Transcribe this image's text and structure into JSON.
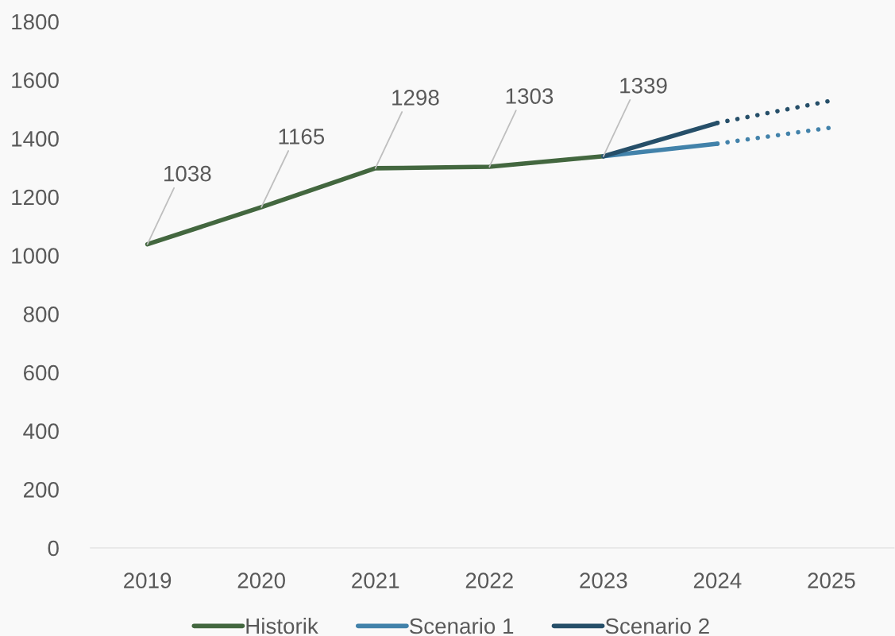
{
  "chart_data": {
    "type": "line",
    "categories": [
      "2019",
      "2020",
      "2021",
      "2022",
      "2023",
      "2024",
      "2025"
    ],
    "series": [
      {
        "name": "Historik",
        "color": "#43673f",
        "values": [
          1038,
          1165,
          1298,
          1303,
          1339,
          null,
          null
        ]
      },
      {
        "name": "Scenario 1",
        "color": "#4282aa",
        "values": [
          null,
          null,
          null,
          null,
          1339,
          1382,
          null
        ]
      },
      {
        "name": "Scenario 2",
        "color": "#264f69",
        "values": [
          null,
          null,
          null,
          null,
          1339,
          1453,
          null
        ]
      },
      {
        "color": "#4282aa",
        "line_style": "dotted",
        "values": [
          null,
          null,
          null,
          null,
          null,
          1382,
          1437
        ]
      },
      {
        "color": "#264f69",
        "line_style": "dotted",
        "values": [
          null,
          null,
          null,
          null,
          null,
          1453,
          1529
        ]
      }
    ],
    "ylim": [
      0,
      1800
    ],
    "yticks": [
      0,
      200,
      400,
      600,
      800,
      1000,
      1200,
      1400,
      1600,
      1800
    ],
    "grid": false,
    "legend": "bottom",
    "line_style": "solid",
    "marker": "none",
    "annotations": [
      {
        "text": "1038",
        "x": "2019",
        "y": 1038
      },
      {
        "text": "1165",
        "x": "2020",
        "y": 1165
      },
      {
        "text": "1298",
        "x": "2021",
        "y": 1298
      },
      {
        "text": "1303",
        "x": "2022",
        "y": 1303
      },
      {
        "text": "1339",
        "x": "2023",
        "y": 1339
      }
    ]
  }
}
